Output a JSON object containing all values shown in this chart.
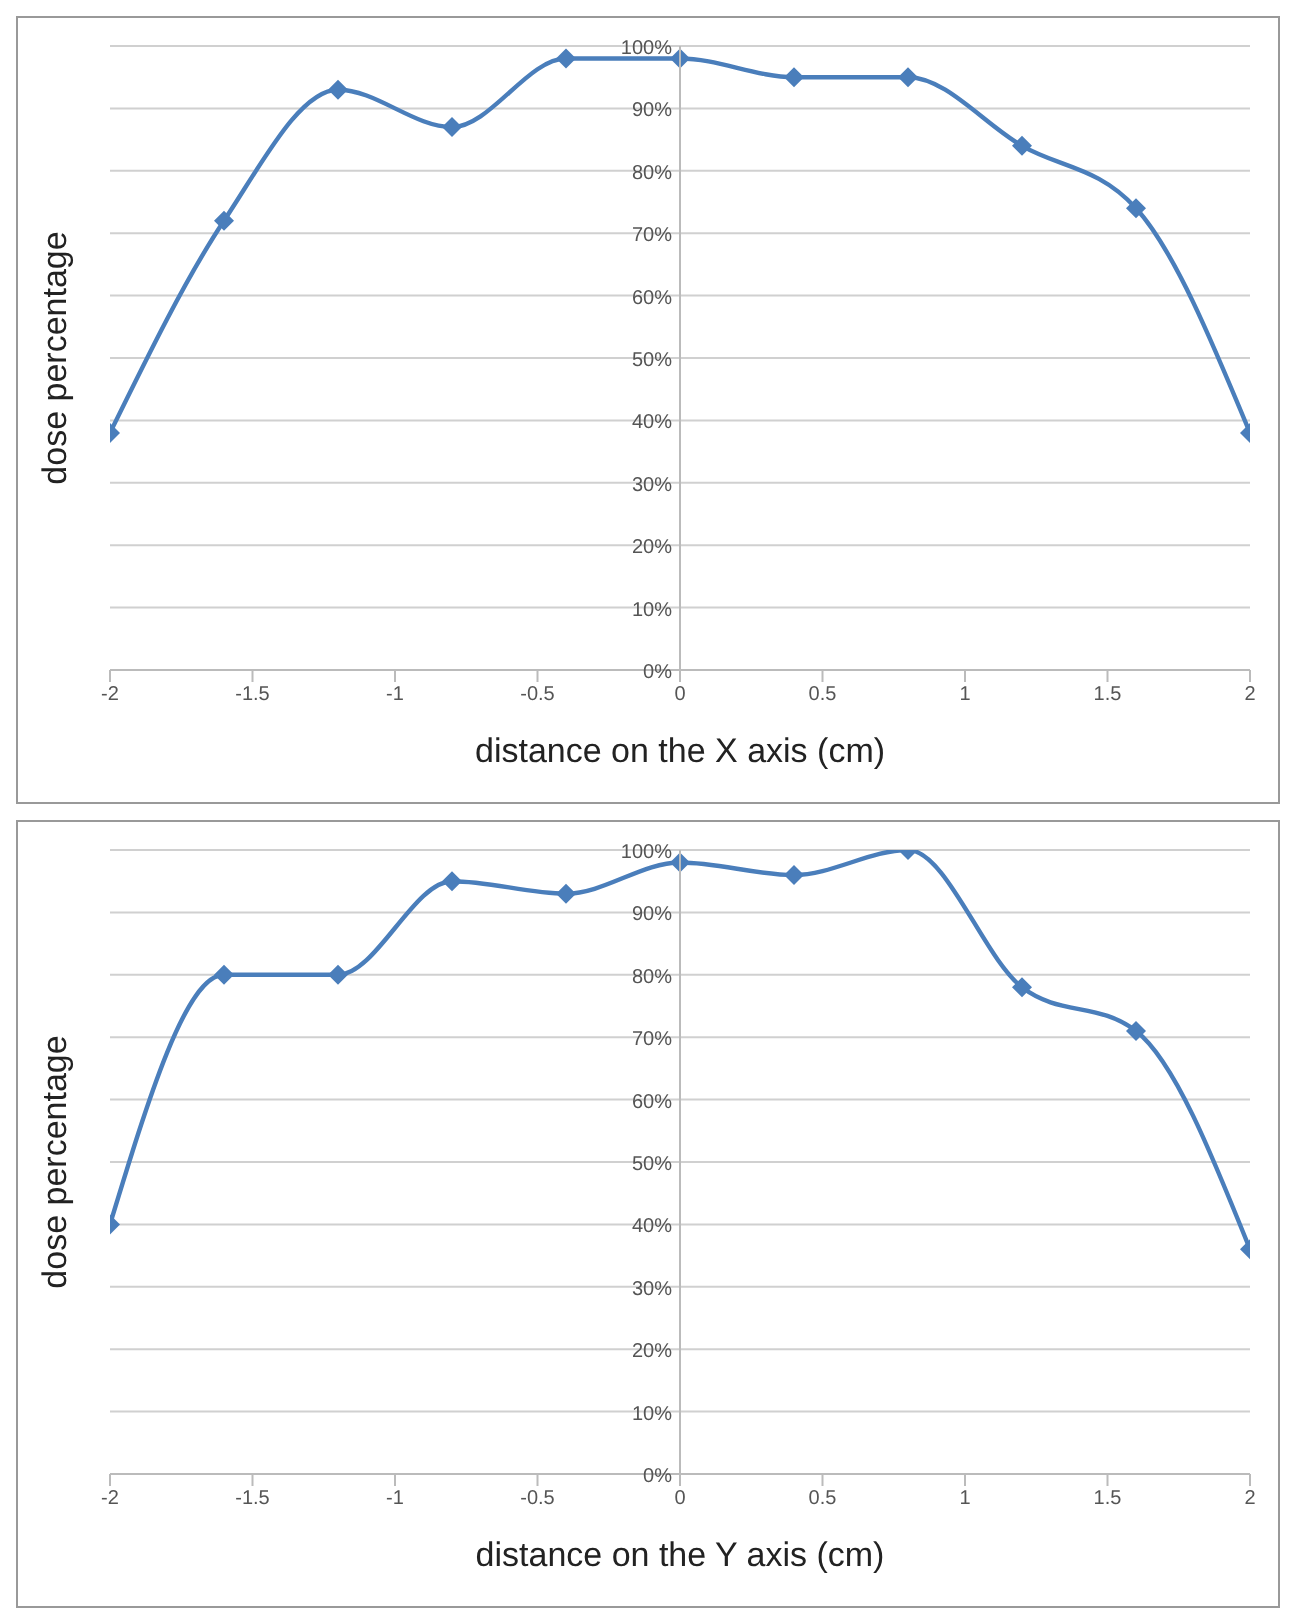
{
  "chart_data": [
    {
      "type": "line",
      "xlabel": "distance on the X axis (cm)",
      "ylabel": "dose percentage",
      "x": [
        -2,
        -1.6,
        -1.2,
        -0.8,
        -0.4,
        0,
        0.4,
        0.8,
        1.2,
        1.6,
        2
      ],
      "series": [
        {
          "color": "#4a7ebb",
          "values": [
            38,
            72,
            93,
            87,
            98,
            98,
            95,
            95,
            84,
            74,
            38
          ]
        }
      ],
      "xlim": [
        -2,
        2
      ],
      "xticks": [
        -2,
        -1.5,
        -1,
        -0.5,
        0,
        0.5,
        1,
        1.5,
        2
      ],
      "ylim": [
        0,
        100
      ],
      "yticks": [
        {
          "value": 0,
          "label": "0%"
        },
        {
          "value": 10,
          "label": "10%"
        },
        {
          "value": 20,
          "label": "20%"
        },
        {
          "value": 30,
          "label": "30%"
        },
        {
          "value": 40,
          "label": "40%"
        },
        {
          "value": 50,
          "label": "50%"
        },
        {
          "value": 60,
          "label": "60%"
        },
        {
          "value": 70,
          "label": "70%"
        },
        {
          "value": 80,
          "label": "80%"
        },
        {
          "value": 90,
          "label": "90%"
        },
        {
          "value": 100,
          "label": "100%"
        }
      ],
      "grid": "y",
      "marker": "diamond",
      "line_style": "solid",
      "legend": false
    },
    {
      "type": "line",
      "xlabel": "distance on the Y axis (cm)",
      "ylabel": "dose percentage",
      "x": [
        -2,
        -1.6,
        -1.2,
        -0.8,
        -0.4,
        0,
        0.4,
        0.8,
        1.2,
        1.6,
        2
      ],
      "series": [
        {
          "color": "#4a7ebb",
          "values": [
            40,
            80,
            80,
            95,
            93,
            98,
            96,
            100,
            78,
            71,
            36
          ]
        }
      ],
      "xlim": [
        -2,
        2
      ],
      "xticks": [
        -2,
        -1.5,
        -1,
        -0.5,
        0,
        0.5,
        1,
        1.5,
        2
      ],
      "ylim": [
        0,
        100
      ],
      "yticks": [
        {
          "value": 0,
          "label": "0%"
        },
        {
          "value": 10,
          "label": "10%"
        },
        {
          "value": 20,
          "label": "20%"
        },
        {
          "value": 30,
          "label": "30%"
        },
        {
          "value": 40,
          "label": "40%"
        },
        {
          "value": 50,
          "label": "50%"
        },
        {
          "value": 60,
          "label": "60%"
        },
        {
          "value": 70,
          "label": "70%"
        },
        {
          "value": 80,
          "label": "80%"
        },
        {
          "value": 90,
          "label": "90%"
        },
        {
          "value": 100,
          "label": "100%"
        }
      ],
      "grid": "y",
      "marker": "diamond",
      "line_style": "solid",
      "legend": false
    }
  ]
}
